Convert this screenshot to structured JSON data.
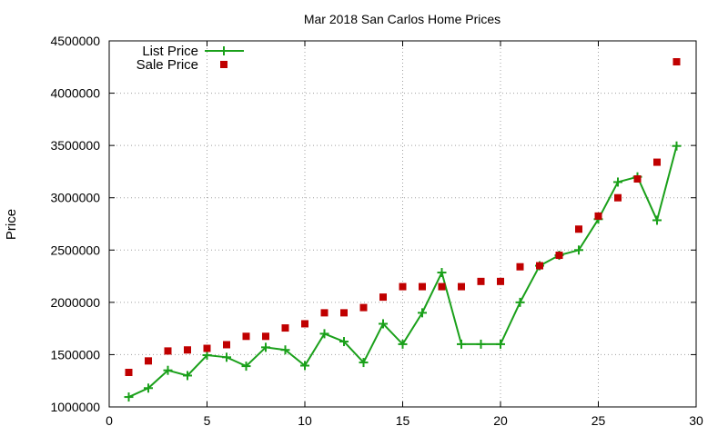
{
  "chart_data": {
    "type": "line",
    "title": "Mar 2018 San Carlos Home Prices",
    "xlabel": "",
    "ylabel": "Price",
    "xlim": [
      0,
      30
    ],
    "ylim": [
      1000000,
      4500000
    ],
    "xticks": [
      0,
      5,
      10,
      15,
      20,
      25,
      30
    ],
    "yticks": [
      1000000,
      1500000,
      2000000,
      2500000,
      3000000,
      3500000,
      4000000,
      4500000
    ],
    "grid": true,
    "legend_position": "top-left",
    "series": [
      {
        "name": "List Price",
        "style": "line-with-plus-markers",
        "color": "#1aa01a",
        "x": [
          1,
          2,
          3,
          4,
          5,
          6,
          7,
          8,
          9,
          10,
          11,
          12,
          13,
          14,
          15,
          16,
          17,
          18,
          19,
          20,
          21,
          22,
          23,
          24,
          25,
          26,
          27,
          28,
          29
        ],
        "values": [
          1095000,
          1180000,
          1350000,
          1300000,
          1495000,
          1475000,
          1390000,
          1570000,
          1545000,
          1395000,
          1700000,
          1625000,
          1425000,
          1795000,
          1600000,
          1900000,
          2285000,
          1600000,
          1600000,
          1600000,
          2000000,
          2350000,
          2450000,
          2500000,
          2795000,
          3150000,
          3200000,
          2785000,
          3495000
        ]
      },
      {
        "name": "Sale Price",
        "style": "square-markers",
        "color": "#c00000",
        "x": [
          1,
          2,
          3,
          4,
          5,
          6,
          7,
          8,
          9,
          10,
          11,
          12,
          13,
          14,
          15,
          16,
          17,
          18,
          19,
          20,
          21,
          22,
          23,
          24,
          25,
          26,
          27,
          28,
          29
        ],
        "values": [
          1330000,
          1440000,
          1535000,
          1545000,
          1560000,
          1595000,
          1675000,
          1675000,
          1755000,
          1795000,
          1900000,
          1900000,
          1950000,
          2050000,
          2150000,
          2150000,
          2150000,
          2150000,
          2200000,
          2200000,
          2340000,
          2350000,
          2450000,
          2700000,
          2825000,
          3000000,
          3180000,
          3340000,
          4300000
        ]
      }
    ]
  }
}
